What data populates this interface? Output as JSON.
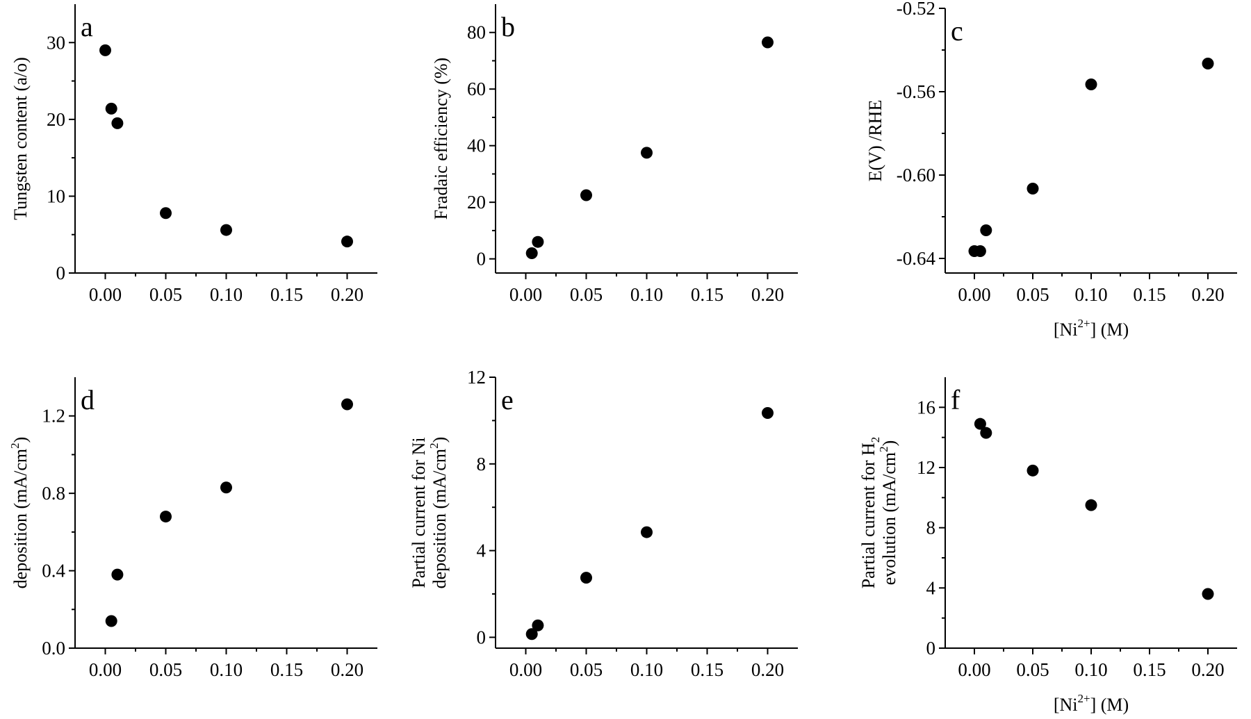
{
  "chart_data": [
    {
      "type": "scatter",
      "panel": "a",
      "ylabel": "Tungsten content (a/o)",
      "xlabel": "",
      "xlim": [
        -0.025,
        0.225
      ],
      "ylim": [
        0,
        35
      ],
      "xticks": [
        0.0,
        0.05,
        0.1,
        0.15,
        0.2
      ],
      "xtick_labels": [
        "0.00",
        "0.05",
        "0.10",
        "0.15",
        "0.20"
      ],
      "yticks": [
        0,
        10,
        20,
        30
      ],
      "ytick_labels": [
        "0",
        "10",
        "20",
        "30"
      ],
      "x": [
        0.0,
        0.005,
        0.01,
        0.05,
        0.1,
        0.2
      ],
      "y": [
        29.0,
        21.4,
        19.5,
        7.8,
        5.6,
        4.1
      ]
    },
    {
      "type": "scatter",
      "panel": "b",
      "ylabel": "Fradaic efficiency (%)",
      "xlabel": "",
      "xlim": [
        -0.025,
        0.225
      ],
      "ylim": [
        -5,
        90
      ],
      "xticks": [
        0.0,
        0.05,
        0.1,
        0.15,
        0.2
      ],
      "xtick_labels": [
        "0.00",
        "0.05",
        "0.10",
        "0.15",
        "0.20"
      ],
      "yticks": [
        0,
        20,
        40,
        60,
        80
      ],
      "ytick_labels": [
        "0",
        "20",
        "40",
        "60",
        "80"
      ],
      "x": [
        0.005,
        0.01,
        0.05,
        0.1,
        0.2
      ],
      "y": [
        2.0,
        6.0,
        22.5,
        37.5,
        76.5
      ]
    },
    {
      "type": "scatter",
      "panel": "c",
      "ylabel": "E(V)  /RHE",
      "xlabel_main": "[Ni",
      "xlabel_sup": "2+",
      "xlabel_tail": "] (M)",
      "xlim": [
        -0.025,
        0.225
      ],
      "ylim": [
        -0.647,
        -0.52
      ],
      "xticks": [
        0.0,
        0.05,
        0.1,
        0.15,
        0.2
      ],
      "xtick_labels": [
        "0.00",
        "0.05",
        "0.10",
        "0.15",
        "0.20"
      ],
      "yticks": [
        -0.64,
        -0.6,
        -0.56,
        -0.52
      ],
      "ytick_labels": [
        "-0.64",
        "-0.60",
        "-0.56",
        "-0.52"
      ],
      "x": [
        0.0,
        0.005,
        0.01,
        0.05,
        0.1,
        0.2
      ],
      "y": [
        -0.6365,
        -0.6365,
        -0.6265,
        -0.6065,
        -0.5565,
        -0.5465
      ]
    },
    {
      "type": "scatter",
      "panel": "d",
      "ylabel": "deposition (mA/cm",
      "ylabel_sup": "2",
      "ylabel_tail": ")",
      "xlabel": "",
      "xlim": [
        -0.025,
        0.225
      ],
      "ylim": [
        0,
        1.4
      ],
      "xticks": [
        0.0,
        0.05,
        0.1,
        0.15,
        0.2
      ],
      "xtick_labels": [
        "0.00",
        "0.05",
        "0.10",
        "0.15",
        "0.20"
      ],
      "yticks": [
        0,
        0.4,
        0.8,
        1.2
      ],
      "ytick_labels": [
        "0.0",
        "0.4",
        "0.8",
        "1.2"
      ],
      "x": [
        0.005,
        0.01,
        0.05,
        0.1,
        0.2
      ],
      "y": [
        0.14,
        0.38,
        0.68,
        0.83,
        1.26
      ]
    },
    {
      "type": "scatter",
      "panel": "e",
      "ylabel_line1": "Partial current for Ni",
      "ylabel_line2": "deposition (mA/cm",
      "ylabel_sup": "2",
      "ylabel_tail": ")",
      "xlabel": "",
      "xlim": [
        -0.025,
        0.225
      ],
      "ylim": [
        -0.5,
        12
      ],
      "xticks": [
        0.0,
        0.05,
        0.1,
        0.15,
        0.2
      ],
      "xtick_labels": [
        "0.00",
        "0.05",
        "0.10",
        "0.15",
        "0.20"
      ],
      "yticks": [
        0,
        4,
        8,
        12
      ],
      "ytick_labels": [
        "0",
        "4",
        "8",
        "12"
      ],
      "x": [
        0.005,
        0.01,
        0.05,
        0.1,
        0.2
      ],
      "y": [
        0.15,
        0.55,
        2.75,
        4.85,
        10.35
      ]
    },
    {
      "type": "scatter",
      "panel": "f",
      "ylabel_line1": "Partial current for H",
      "ylabel_line1_sub": "2",
      "ylabel_line2": "evolution (mA/cm",
      "ylabel_sup": "2",
      "ylabel_tail": ")",
      "xlabel_main": "[Ni",
      "xlabel_sup": "2+",
      "xlabel_tail": "] (M)",
      "xlim": [
        -0.025,
        0.225
      ],
      "ylim": [
        0,
        18
      ],
      "xticks": [
        0.0,
        0.05,
        0.1,
        0.15,
        0.2
      ],
      "xtick_labels": [
        "0.00",
        "0.05",
        "0.10",
        "0.15",
        "0.20"
      ],
      "yticks": [
        0,
        4,
        8,
        12,
        16
      ],
      "ytick_labels": [
        "0",
        "4",
        "8",
        "12",
        "16"
      ],
      "x": [
        0.005,
        0.01,
        0.05,
        0.1,
        0.2
      ],
      "y": [
        14.9,
        14.3,
        11.8,
        9.5,
        3.6
      ]
    }
  ]
}
